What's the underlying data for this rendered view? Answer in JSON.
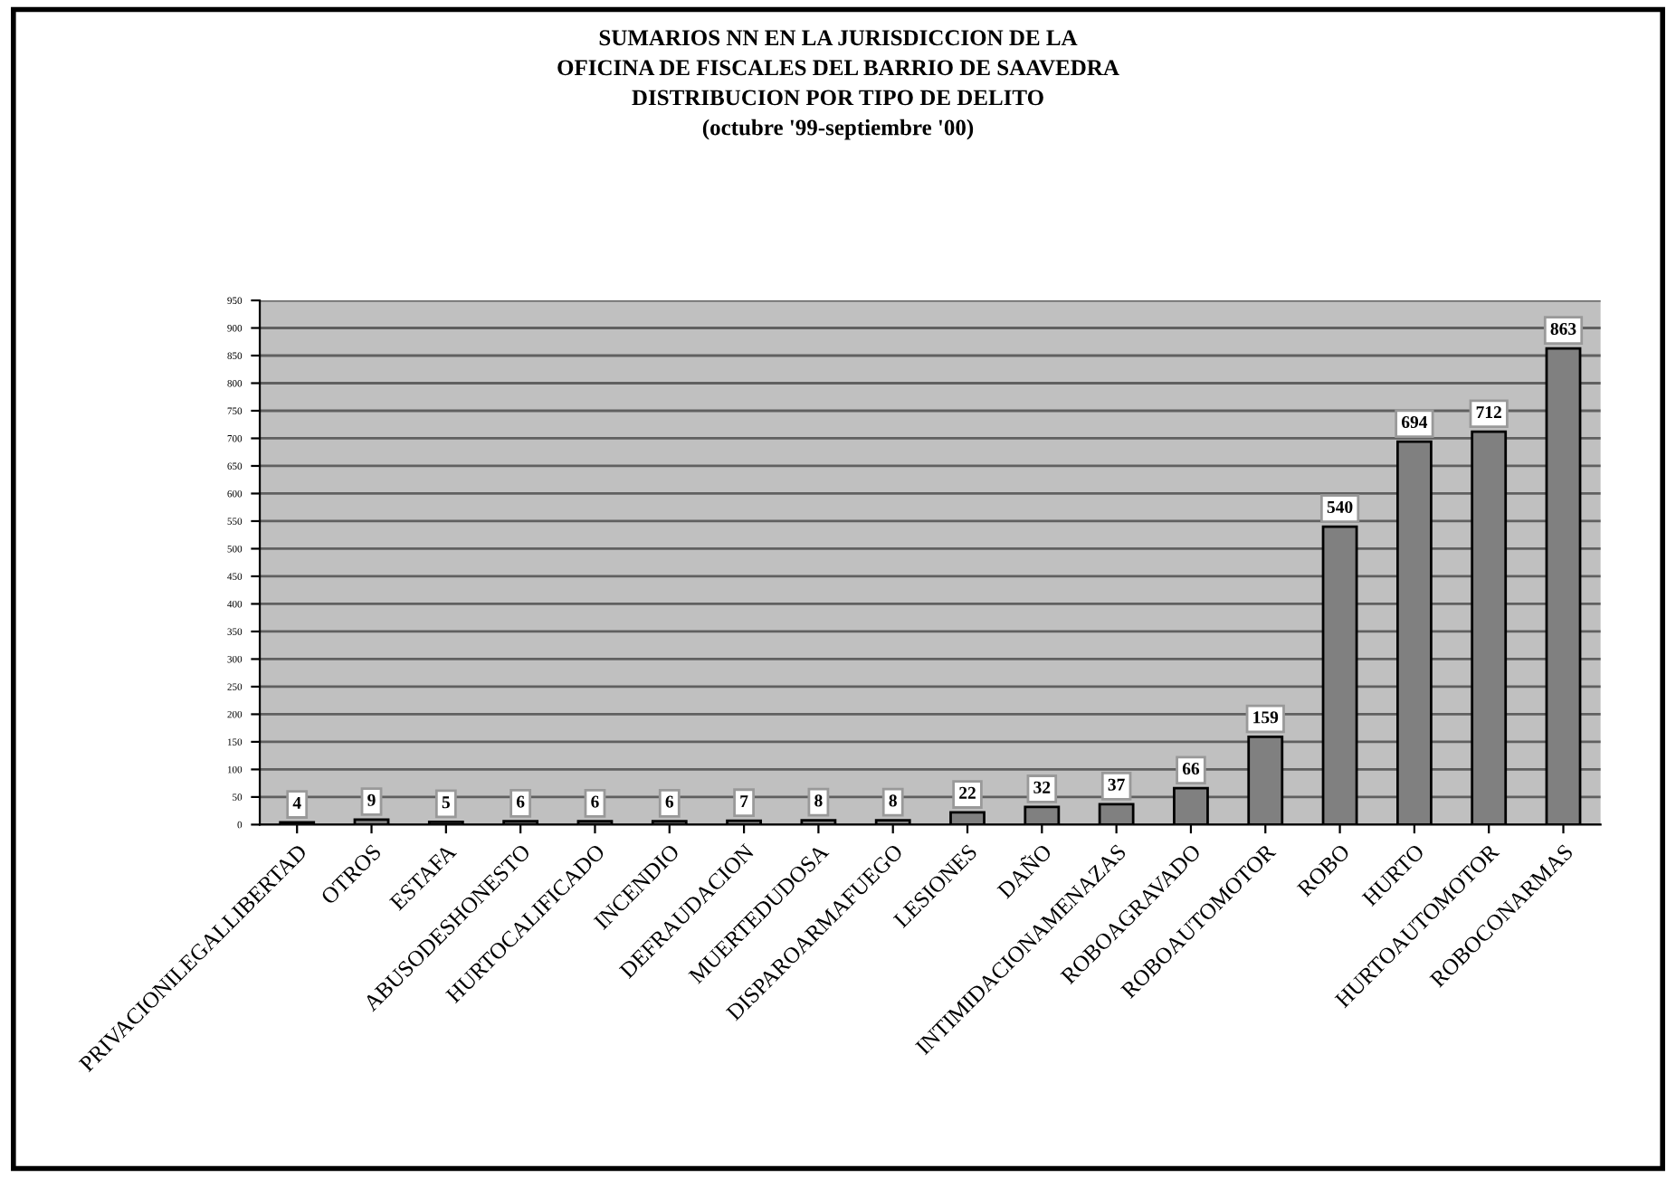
{
  "chart_data": {
    "type": "bar",
    "title": "SUMARIOS NN EN LA JURISDICCION DE LA\nOFICINA DE FISCALES DEL BARRIO DE SAAVEDRA\nDISTRIBUCION POR TIPO DE DELITO\n(octubre '99-septiembre '00)",
    "categories": [
      "PRIVACIONILEGALLIBERTAD",
      "OTROS",
      "ESTAFA",
      "ABUSODESHONESTO",
      "HURTOCALIFICADO",
      "INCENDIO",
      "DEFRAUDACION",
      "MUERTEDUDOSA",
      "DISPAROARMAFUEGO",
      "LESIONES",
      "DAÑO",
      "INTIMIDACIONAMENAZAS",
      "ROBOAGRAVADO",
      "ROBOAUTOMOTOR",
      "ROBO",
      "HURTO",
      "HURTOAUTOMOTOR",
      "ROBOCONARMAS"
    ],
    "values": [
      4,
      9,
      5,
      6,
      6,
      6,
      7,
      8,
      8,
      22,
      32,
      37,
      66,
      159,
      540,
      694,
      712,
      863
    ],
    "color": "#808080",
    "ylim": [
      0,
      950
    ],
    "yticks": [
      0,
      50,
      100,
      150,
      200,
      250,
      300,
      350,
      400,
      450,
      500,
      550,
      600,
      650,
      700,
      750,
      800,
      850,
      900,
      950
    ],
    "grid": "y",
    "data_labels": true
  }
}
